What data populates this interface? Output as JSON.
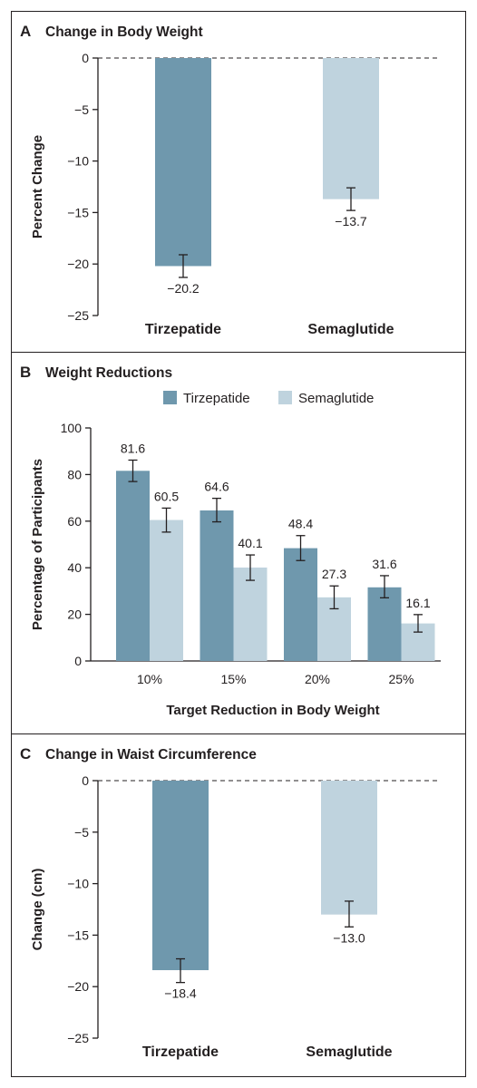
{
  "colors": {
    "tirzepatide": "#6f98ad",
    "semaglutide": "#bfd3de",
    "ink": "#231f20"
  },
  "panels": {
    "a": {
      "letter": "A",
      "title": "Change in Body Weight"
    },
    "b": {
      "letter": "B",
      "title": "Weight Reductions"
    },
    "c": {
      "letter": "C",
      "title": "Change in Waist Circumference"
    }
  },
  "chart_data": [
    {
      "type": "bar",
      "panel": "A",
      "title": "Change in Body Weight",
      "ylabel": "Percent Change",
      "xlabel": "",
      "categories": [
        "Tirzepatide",
        "Semaglutide"
      ],
      "values": [
        -20.2,
        -13.7
      ],
      "value_labels": [
        "−20.2",
        "−13.7"
      ],
      "error": [
        [
          -21.3,
          -19.1
        ],
        [
          -14.8,
          -12.6
        ]
      ],
      "ylim": [
        -25,
        0
      ],
      "yticks": [
        0,
        -5,
        -10,
        -15,
        -20,
        -25
      ],
      "ytick_labels": [
        "0",
        "−5",
        "−10",
        "−15",
        "−20",
        "−25"
      ],
      "colors": [
        "#6f98ad",
        "#bfd3de"
      ],
      "zero_line": "dashed"
    },
    {
      "type": "bar",
      "panel": "B",
      "title": "Weight Reductions",
      "ylabel": "Percentage of Participants",
      "xlabel": "Target Reduction in Body Weight",
      "categories": [
        "10%",
        "15%",
        "20%",
        "25%"
      ],
      "legend": "top",
      "series": [
        {
          "name": "Tirzepatide",
          "values": [
            81.6,
            64.6,
            48.4,
            31.6
          ],
          "value_labels": [
            "81.6",
            "64.6",
            "48.4",
            "31.6"
          ],
          "error": [
            [
              77.0,
              86.2
            ],
            [
              59.7,
              69.8
            ],
            [
              43.1,
              53.8
            ],
            [
              27.1,
              36.6
            ]
          ],
          "color": "#6f98ad"
        },
        {
          "name": "Semaglutide",
          "values": [
            60.5,
            40.1,
            27.3,
            16.1
          ],
          "value_labels": [
            "60.5",
            "40.1",
            "27.3",
            "16.1"
          ],
          "error": [
            [
              55.3,
              65.6
            ],
            [
              34.6,
              45.5
            ],
            [
              22.4,
              32.2
            ],
            [
              12.4,
              19.9
            ]
          ],
          "color": "#bfd3de"
        }
      ],
      "ylim": [
        0,
        100
      ],
      "yticks": [
        0,
        20,
        40,
        60,
        80,
        100
      ],
      "ytick_labels": [
        "0",
        "20",
        "40",
        "60",
        "80",
        "100"
      ]
    },
    {
      "type": "bar",
      "panel": "C",
      "title": "Change in Waist Circumference",
      "ylabel": "Change (cm)",
      "xlabel": "",
      "categories": [
        "Tirzepatide",
        "Semaglutide"
      ],
      "values": [
        -18.4,
        -13.0
      ],
      "value_labels": [
        "−18.4",
        "−13.0"
      ],
      "error": [
        [
          -19.6,
          -17.3
        ],
        [
          -14.2,
          -11.7
        ]
      ],
      "ylim": [
        -25,
        0
      ],
      "yticks": [
        0,
        -5,
        -10,
        -15,
        -20,
        -25
      ],
      "ytick_labels": [
        "0",
        "−5",
        "−10",
        "−15",
        "−20",
        "−25"
      ],
      "colors": [
        "#6f98ad",
        "#bfd3de"
      ],
      "zero_line": "dashed"
    }
  ]
}
